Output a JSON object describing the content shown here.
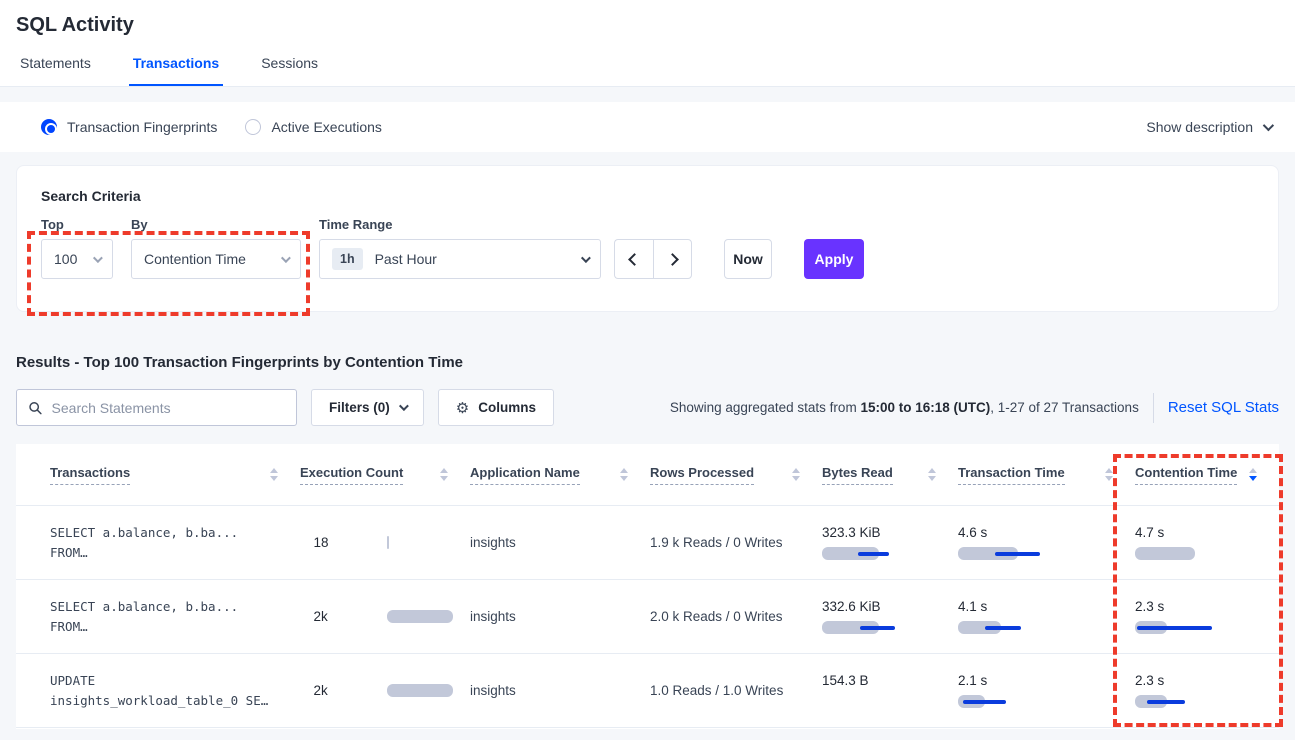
{
  "page": {
    "title": "SQL Activity"
  },
  "tabs": [
    {
      "label": "Statements",
      "active": false
    },
    {
      "label": "Transactions",
      "active": true
    },
    {
      "label": "Sessions",
      "active": false
    }
  ],
  "view_toggle": {
    "options": [
      {
        "label": "Transaction Fingerprints",
        "selected": true
      },
      {
        "label": "Active Executions",
        "selected": false
      }
    ],
    "show_description": "Show description"
  },
  "search_criteria": {
    "title": "Search Criteria",
    "top": {
      "label": "Top",
      "value": "100"
    },
    "by": {
      "label": "By",
      "value": "Contention Time"
    },
    "time_range": {
      "label": "Time Range",
      "badge": "1h",
      "value": "Past Hour"
    },
    "now_label": "Now",
    "apply_label": "Apply"
  },
  "results": {
    "heading": "Results - Top 100 Transaction Fingerprints by Contention Time",
    "search_placeholder": "Search Statements",
    "filters_label": "Filters (0)",
    "columns_label": "Columns",
    "stats_prefix": "Showing aggregated stats from ",
    "stats_bold": "15:00 to 16:18 (UTC)",
    "stats_suffix": ", 1-27 of 27 Transactions",
    "reset_label": "Reset SQL Stats"
  },
  "table": {
    "headers": [
      {
        "label": "Transactions"
      },
      {
        "label": "Execution Count"
      },
      {
        "label": "Application Name"
      },
      {
        "label": "Rows Processed"
      },
      {
        "label": "Bytes Read"
      },
      {
        "label": "Transaction Time"
      },
      {
        "label": "Contention Time",
        "sorted": "desc"
      }
    ],
    "rows": [
      {
        "query_line1": "SELECT a.balance, b.ba...",
        "query_line2": "FROM…",
        "exec": {
          "value": "18",
          "bar": 2,
          "line": null
        },
        "app_name": "insights",
        "rows_processed": "1.9 k Reads / 0 Writes",
        "bytes_read": {
          "value": "323.3 KiB",
          "bar": 57,
          "line": [
            36,
            67
          ]
        },
        "transaction_time": {
          "value": "4.6 s",
          "bar": 60,
          "line": [
            37,
            82
          ]
        },
        "contention_time": {
          "value": "4.7 s",
          "bar": 60,
          "line": null
        }
      },
      {
        "query_line1": "SELECT a.balance, b.ba...",
        "query_line2": "FROM…",
        "exec": {
          "value": "2k",
          "bar": 66,
          "line": null
        },
        "app_name": "insights",
        "rows_processed": "2.0 k Reads / 0 Writes",
        "bytes_read": {
          "value": "332.6 KiB",
          "bar": 57,
          "line": [
            38,
            73
          ]
        },
        "transaction_time": {
          "value": "4.1 s",
          "bar": 43,
          "line": [
            27,
            63
          ]
        },
        "contention_time": {
          "value": "2.3 s",
          "bar": 32,
          "line": [
            2,
            77
          ]
        }
      },
      {
        "query_line1": "UPDATE",
        "query_line2": "insights_workload_table_0 SE…",
        "exec": {
          "value": "2k",
          "bar": 66,
          "line": null
        },
        "app_name": "insights",
        "rows_processed": "1.0 Reads / 1.0 Writes",
        "bytes_read": {
          "value": "154.3 B",
          "bar": null,
          "line": null
        },
        "transaction_time": {
          "value": "2.1 s",
          "bar": 27,
          "line": [
            5,
            48
          ]
        },
        "contention_time": {
          "value": "2.3 s",
          "bar": 32,
          "line": [
            12,
            50
          ]
        }
      }
    ]
  },
  "icons": {
    "search": "magnifier-shape",
    "gear": "⚙",
    "chevron_down": "v-chevron",
    "chevron_left": "left-chevron",
    "chevron_right": "right-chevron",
    "sort": "up-down-triangles"
  },
  "colors": {
    "accent_blue": "#0055ff",
    "apply_purple": "#6933ff",
    "annotation_red": "#ee3b2b",
    "bar_gray": "#c2c8d9",
    "bar_line_blue": "#0a3cdd",
    "background": "#f5f7fa"
  }
}
